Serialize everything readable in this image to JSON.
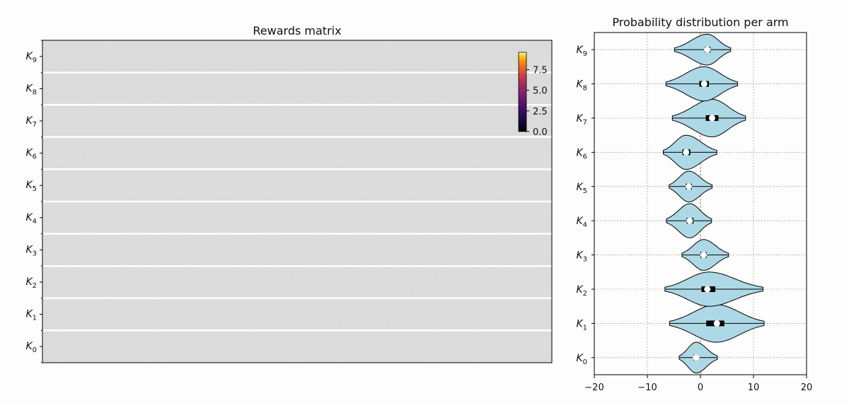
{
  "chart_data": [
    {
      "type": "heatmap",
      "title": "Rewards matrix",
      "rows": [
        "0",
        "1",
        "2",
        "3",
        "4",
        "5",
        "6",
        "7",
        "8",
        "9"
      ],
      "row_symbol": "K",
      "cell_fill": "#dcdcdc",
      "separator_color": "#ffffff",
      "colorbar": {
        "ticks": [
          "0.0",
          "2.5",
          "5.0",
          "7.5"
        ],
        "tick_values": [
          0,
          2.5,
          5,
          7.5
        ],
        "range": [
          0,
          9.6
        ],
        "colormap": "inferno",
        "placement": "top-right"
      }
    },
    {
      "type": "violin",
      "title": "Probability distribution per arm",
      "rows": [
        "0",
        "1",
        "2",
        "3",
        "4",
        "5",
        "6",
        "7",
        "8",
        "9"
      ],
      "row_symbol": "K",
      "xlim": [
        -20,
        20
      ],
      "xticks": [
        "−20",
        "−10",
        "0",
        "10",
        "20"
      ],
      "xtick_values": [
        -20,
        -10,
        0,
        10,
        20
      ],
      "grid": true,
      "reference_line": 0,
      "fill_color": "#add8e6",
      "arms": [
        {
          "label": "0",
          "min": -4,
          "max": 3.2,
          "median": -0.8,
          "q1": -1.3,
          "q3": -0.4,
          "halfwidth": 0.45,
          "peak": -0.8
        },
        {
          "label": "1",
          "min": -5.8,
          "max": 12,
          "median": 3.1,
          "q1": 1.1,
          "q3": 4.5,
          "halfwidth": 0.55,
          "peak": 3.0
        },
        {
          "label": "2",
          "min": -6.7,
          "max": 11.8,
          "median": 1.3,
          "q1": 0.2,
          "q3": 2.8,
          "halfwidth": 0.5,
          "peak": 1.6
        },
        {
          "label": "3",
          "min": -3.5,
          "max": 5.3,
          "median": 0.6,
          "q1": 0.0,
          "q3": 1.2,
          "halfwidth": 0.45,
          "peak": 0.6
        },
        {
          "label": "4",
          "min": -6.4,
          "max": 2.1,
          "median": -2.0,
          "q1": -2.6,
          "q3": -1.3,
          "halfwidth": 0.5,
          "peak": -2.0
        },
        {
          "label": "5",
          "min": -5.9,
          "max": 2.2,
          "median": -2.2,
          "q1": -2.8,
          "q3": -1.6,
          "halfwidth": 0.45,
          "peak": -2.2
        },
        {
          "label": "6",
          "min": -7.0,
          "max": 3.1,
          "median": -2.7,
          "q1": -3.4,
          "q3": -1.9,
          "halfwidth": 0.5,
          "peak": -2.7
        },
        {
          "label": "7",
          "min": -5.3,
          "max": 8.5,
          "median": 2.2,
          "q1": 1.0,
          "q3": 3.4,
          "halfwidth": 0.55,
          "peak": 2.2
        },
        {
          "label": "8",
          "min": -6.5,
          "max": 7.0,
          "median": 0.7,
          "q1": -0.2,
          "q3": 1.6,
          "halfwidth": 0.5,
          "peak": 0.7
        },
        {
          "label": "9",
          "min": -4.9,
          "max": 5.7,
          "median": 1.3,
          "q1": 0.8,
          "q3": 1.9,
          "halfwidth": 0.45,
          "peak": 1.3
        }
      ]
    }
  ]
}
